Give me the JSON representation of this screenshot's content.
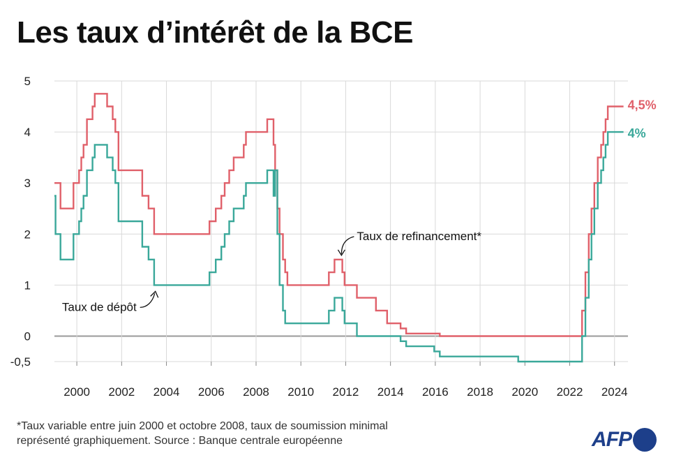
{
  "title": "Les taux d’intérêt de la BCE",
  "footnote_line1": "*Taux variable entre juin 2000 et octobre 2008, taux de soumission minimal",
  "footnote_line2": "représenté graphiquement. Source : Banque centrale européenne",
  "logo": "AFP",
  "colors": {
    "refi": "#e0606a",
    "depot": "#3aa89a",
    "grid": "#d9d9d9",
    "zero": "#999999"
  },
  "chart_data": {
    "type": "line",
    "title": "Les taux d’intérêt de la BCE",
    "xlim": [
      1999.0,
      2024.6
    ],
    "ylim": [
      -0.5,
      5
    ],
    "xticks": [
      2000,
      2002,
      2004,
      2006,
      2008,
      2010,
      2012,
      2014,
      2016,
      2018,
      2020,
      2022,
      2024
    ],
    "yticks": [
      {
        "value": 5,
        "label": "5"
      },
      {
        "value": 4,
        "label": "4"
      },
      {
        "value": 3,
        "label": "3"
      },
      {
        "value": 2,
        "label": "2"
      },
      {
        "value": 1,
        "label": "1"
      },
      {
        "value": 0,
        "label": "0"
      },
      {
        "value": -0.5,
        "label": "-0,5"
      }
    ],
    "grid": true,
    "series": [
      {
        "name": "Taux de refinancement*",
        "end_label": "4,5%",
        "color": "#e0606a",
        "step": true,
        "points": [
          [
            1999.0,
            3.0
          ],
          [
            1999.27,
            2.5
          ],
          [
            1999.85,
            3.0
          ],
          [
            2000.1,
            3.25
          ],
          [
            2000.2,
            3.5
          ],
          [
            2000.3,
            3.75
          ],
          [
            2000.45,
            4.25
          ],
          [
            2000.7,
            4.5
          ],
          [
            2000.8,
            4.75
          ],
          [
            2001.35,
            4.5
          ],
          [
            2001.6,
            4.25
          ],
          [
            2001.72,
            4.0
          ],
          [
            2001.86,
            3.25
          ],
          [
            2002.92,
            2.75
          ],
          [
            2003.2,
            2.5
          ],
          [
            2003.45,
            2.0
          ],
          [
            2005.92,
            2.25
          ],
          [
            2006.2,
            2.5
          ],
          [
            2006.45,
            2.75
          ],
          [
            2006.6,
            3.0
          ],
          [
            2006.8,
            3.25
          ],
          [
            2007.0,
            3.5
          ],
          [
            2007.45,
            3.75
          ],
          [
            2007.55,
            4.0
          ],
          [
            2008.5,
            4.25
          ],
          [
            2008.78,
            3.75
          ],
          [
            2008.85,
            3.25
          ],
          [
            2008.95,
            2.5
          ],
          [
            2009.05,
            2.0
          ],
          [
            2009.2,
            1.5
          ],
          [
            2009.3,
            1.25
          ],
          [
            2009.4,
            1.0
          ],
          [
            2011.25,
            1.25
          ],
          [
            2011.5,
            1.5
          ],
          [
            2011.85,
            1.25
          ],
          [
            2011.95,
            1.0
          ],
          [
            2012.5,
            0.75
          ],
          [
            2013.35,
            0.5
          ],
          [
            2013.85,
            0.25
          ],
          [
            2014.45,
            0.15
          ],
          [
            2014.7,
            0.05
          ],
          [
            2016.2,
            0.0
          ],
          [
            2022.55,
            0.5
          ],
          [
            2022.7,
            1.25
          ],
          [
            2022.85,
            2.0
          ],
          [
            2022.97,
            2.5
          ],
          [
            2023.1,
            3.0
          ],
          [
            2023.25,
            3.5
          ],
          [
            2023.4,
            3.75
          ],
          [
            2023.5,
            4.0
          ],
          [
            2023.6,
            4.25
          ],
          [
            2023.7,
            4.5
          ],
          [
            2024.4,
            4.5
          ]
        ]
      },
      {
        "name": "Taux de dépôt",
        "end_label": "4%",
        "color": "#3aa89a",
        "step": true,
        "points": [
          [
            1999.0,
            2.75
          ],
          [
            1999.05,
            2.0
          ],
          [
            1999.27,
            1.5
          ],
          [
            1999.85,
            2.0
          ],
          [
            2000.1,
            2.25
          ],
          [
            2000.2,
            2.5
          ],
          [
            2000.3,
            2.75
          ],
          [
            2000.45,
            3.25
          ],
          [
            2000.7,
            3.5
          ],
          [
            2000.8,
            3.75
          ],
          [
            2001.35,
            3.5
          ],
          [
            2001.6,
            3.25
          ],
          [
            2001.72,
            3.0
          ],
          [
            2001.86,
            2.25
          ],
          [
            2002.92,
            1.75
          ],
          [
            2003.2,
            1.5
          ],
          [
            2003.45,
            1.0
          ],
          [
            2005.92,
            1.25
          ],
          [
            2006.2,
            1.5
          ],
          [
            2006.45,
            1.75
          ],
          [
            2006.6,
            2.0
          ],
          [
            2006.8,
            2.25
          ],
          [
            2007.0,
            2.5
          ],
          [
            2007.45,
            2.75
          ],
          [
            2007.55,
            3.0
          ],
          [
            2008.5,
            3.25
          ],
          [
            2008.78,
            2.75
          ],
          [
            2008.85,
            3.25
          ],
          [
            2008.95,
            2.0
          ],
          [
            2009.05,
            1.0
          ],
          [
            2009.2,
            0.5
          ],
          [
            2009.3,
            0.25
          ],
          [
            2011.25,
            0.5
          ],
          [
            2011.5,
            0.75
          ],
          [
            2011.85,
            0.5
          ],
          [
            2011.95,
            0.25
          ],
          [
            2012.5,
            0.0
          ],
          [
            2014.45,
            -0.1
          ],
          [
            2014.7,
            -0.2
          ],
          [
            2015.95,
            -0.3
          ],
          [
            2016.2,
            -0.4
          ],
          [
            2019.7,
            -0.5
          ],
          [
            2022.55,
            0.0
          ],
          [
            2022.7,
            0.75
          ],
          [
            2022.85,
            1.5
          ],
          [
            2022.97,
            2.0
          ],
          [
            2023.1,
            2.5
          ],
          [
            2023.25,
            3.0
          ],
          [
            2023.4,
            3.25
          ],
          [
            2023.5,
            3.5
          ],
          [
            2023.6,
            3.75
          ],
          [
            2023.7,
            4.0
          ],
          [
            2024.4,
            4.0
          ]
        ]
      }
    ],
    "annotations": [
      {
        "text": "Taux de refinancement*",
        "series": "Taux de refinancement*",
        "at": [
          2011.75,
          1.5
        ]
      },
      {
        "text": "Taux de dépôt",
        "series": "Taux de dépôt",
        "at": [
          2003.6,
          1.0
        ]
      }
    ]
  }
}
